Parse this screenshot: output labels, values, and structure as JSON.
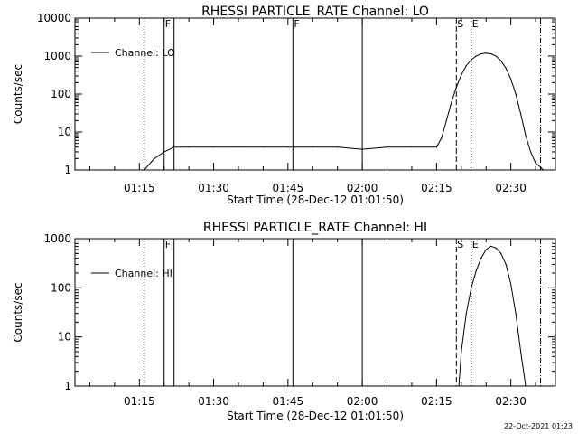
{
  "footer": {
    "date": "22-Oct-2021 01:23"
  },
  "chart_data": [
    {
      "type": "line",
      "title": "RHESSI PARTICLE_RATE Channel: LO",
      "xlabel": "Start Time (28-Dec-12 01:01:50)",
      "ylabel": "Counts/sec",
      "yscale": "log",
      "ylim": [
        1,
        10000
      ],
      "xlim": [
        "01:02:00",
        "02:39:00"
      ],
      "xticks": [
        "01:15",
        "01:30",
        "01:45",
        "02:00",
        "02:15",
        "02:30"
      ],
      "yticks": [
        "1",
        "10",
        "100",
        "1000",
        "10000"
      ],
      "legend": {
        "position": "top-left",
        "entries": [
          "Channel: LO"
        ]
      },
      "series": [
        {
          "name": "Channel: LO",
          "x": [
            "01:02:00",
            "01:03:00",
            "01:04:00",
            "01:05:00",
            "01:06:00",
            "01:07:00",
            "01:08:00",
            "01:09:00",
            "01:10:00",
            "01:11:00",
            "01:12:00",
            "01:13:00",
            "01:14:00",
            "01:15:00",
            "01:16:00",
            "01:18:00",
            "01:20:00",
            "01:22:00",
            "01:25:00",
            "01:30:00",
            "01:35:00",
            "01:40:00",
            "01:45:00",
            "01:50:00",
            "01:55:00",
            "02:00:00",
            "02:05:00",
            "02:10:00",
            "02:15:00",
            "02:16:00",
            "02:17:00",
            "02:18:00",
            "02:19:00",
            "02:20:00",
            "02:21:00",
            "02:22:00",
            "02:23:00",
            "02:24:00",
            "02:25:00",
            "02:26:00",
            "02:27:00",
            "02:28:00",
            "02:29:00",
            "02:30:00",
            "02:31:00",
            "02:32:00",
            "02:33:00",
            "02:34:00",
            "02:35:00",
            "02:36:00",
            "02:36:30"
          ],
          "values": [
            1,
            1,
            1,
            1,
            1,
            1,
            1,
            1,
            1,
            1,
            1,
            1,
            1,
            1,
            1,
            2,
            3,
            4,
            4,
            4,
            4,
            4,
            4,
            4,
            4,
            3.5,
            4,
            4,
            4,
            7,
            20,
            60,
            150,
            320,
            560,
            800,
            1000,
            1150,
            1200,
            1150,
            1000,
            750,
            480,
            250,
            100,
            30,
            8,
            3,
            1.5,
            1.2,
            1
          ]
        }
      ],
      "annotations": {
        "solid_lines": [
          "01:20:00",
          "01:22:00",
          "01:46:00",
          "02:00:00"
        ],
        "dotted_lines": [
          "01:16:00",
          "02:22:00"
        ],
        "dashed_lines": [
          "02:19:00"
        ],
        "dashdot_lines": [
          "02:36:00"
        ],
        "markers": [
          {
            "label": "F",
            "at": "01:20:00"
          },
          {
            "label": "F",
            "at": "01:46:00"
          },
          {
            "label": "S",
            "at": "02:19:00"
          },
          {
            "label": "E",
            "at": "02:22:00"
          }
        ]
      }
    },
    {
      "type": "line",
      "title": "RHESSI PARTICLE_RATE Channel: HI",
      "xlabel": "Start Time (28-Dec-12 01:01:50)",
      "ylabel": "Counts/sec",
      "yscale": "log",
      "ylim": [
        1,
        1000
      ],
      "xlim": [
        "01:02:00",
        "02:39:00"
      ],
      "xticks": [
        "01:15",
        "01:30",
        "01:45",
        "02:00",
        "02:15",
        "02:30"
      ],
      "yticks": [
        "1",
        "10",
        "100",
        "1000"
      ],
      "legend": {
        "position": "top-left",
        "entries": [
          "Channel: HI"
        ]
      },
      "series": [
        {
          "name": "Channel: HI",
          "x": [
            "02:19:30",
            "02:20:00",
            "02:21:00",
            "02:22:00",
            "02:23:00",
            "02:24:00",
            "02:25:00",
            "02:26:00",
            "02:27:00",
            "02:28:00",
            "02:29:00",
            "02:30:00",
            "02:31:00",
            "02:32:00",
            "02:33:00"
          ],
          "values": [
            1,
            5,
            30,
            100,
            220,
            400,
            600,
            700,
            650,
            500,
            300,
            120,
            30,
            5,
            1
          ]
        }
      ],
      "annotations": {
        "solid_lines": [
          "01:20:00",
          "01:22:00",
          "01:46:00",
          "02:00:00"
        ],
        "dotted_lines": [
          "01:16:00",
          "02:22:00"
        ],
        "dashed_lines": [
          "02:19:00"
        ],
        "dashdot_lines": [
          "02:36:00"
        ],
        "markers": [
          {
            "label": "F",
            "at": "01:20:00"
          },
          {
            "label": "S",
            "at": "02:19:00"
          },
          {
            "label": "E",
            "at": "02:22:00"
          }
        ]
      }
    }
  ]
}
